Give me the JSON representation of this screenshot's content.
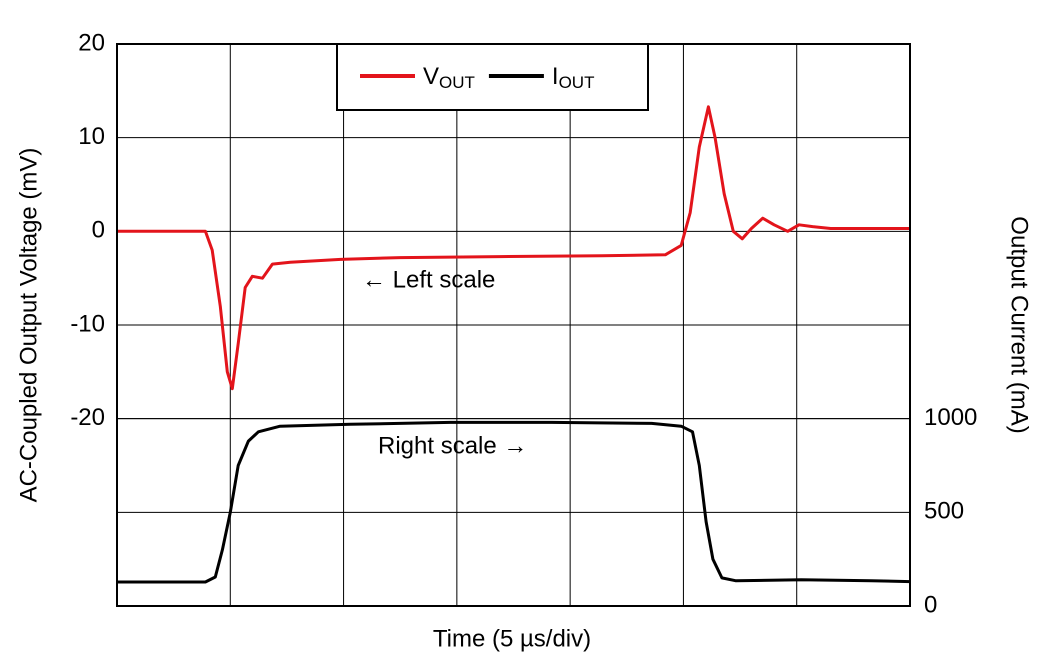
{
  "chart_data": {
    "type": "line",
    "x_label": "Time (5 µs/div)",
    "y_label": "AC-Coupled Output Voltage (mV)",
    "y2_label": "Output Current (mA)",
    "xlim": [
      0,
      35
    ],
    "xticks": [
      5,
      10,
      15,
      20,
      25,
      30
    ],
    "ylim": [
      -40,
      20
    ],
    "yticks": [
      20,
      10,
      0,
      -10,
      -20
    ],
    "y2lim": [
      0,
      3000
    ],
    "y2ticks": [
      1000,
      500,
      0
    ],
    "grid": true,
    "legend": "top",
    "annotations": [
      "← Left scale",
      "Right scale →"
    ],
    "series": [
      {
        "name": "VOUT",
        "color": "#e3141b",
        "x": [
          0,
          3.9,
          4.2,
          4.56,
          4.87,
          5.09,
          5.35,
          5.66,
          5.97,
          6.42,
          6.86,
          7.65,
          9.87,
          12.5,
          16.9,
          21.4,
          24.2,
          24.9,
          25.3,
          25.7,
          26.1,
          26.4,
          26.8,
          27.2,
          27.6,
          28.0,
          28.5,
          29.0,
          29.6,
          30.1,
          30.7,
          31.5,
          33.3,
          35
        ],
        "values": [
          0,
          0,
          -2,
          -8,
          -15,
          -16.8,
          -12,
          -6,
          -4.8,
          -5,
          -3.5,
          -3.3,
          -3,
          -2.8,
          -2.7,
          -2.6,
          -2.5,
          -1.5,
          2,
          9,
          13.3,
          10,
          4,
          0,
          -0.8,
          0.3,
          1.4,
          0.7,
          0,
          0.7,
          0.5,
          0.3,
          0.3,
          0.3
        ]
      },
      {
        "name": "IOUT",
        "color": "#000000",
        "axis": "y2",
        "x": [
          0,
          3.9,
          4.34,
          4.65,
          5.0,
          5.35,
          5.8,
          6.24,
          7.2,
          10.3,
          14.7,
          19.2,
          23.6,
          24.9,
          25.4,
          25.7,
          26.0,
          26.3,
          26.7,
          27.3,
          30.2,
          33.3,
          35
        ],
        "values": [
          128,
          128,
          155,
          300,
          500,
          750,
          880,
          930,
          960,
          970,
          980,
          980,
          975,
          960,
          930,
          750,
          450,
          250,
          150,
          135,
          140,
          135,
          130
        ]
      }
    ]
  }
}
